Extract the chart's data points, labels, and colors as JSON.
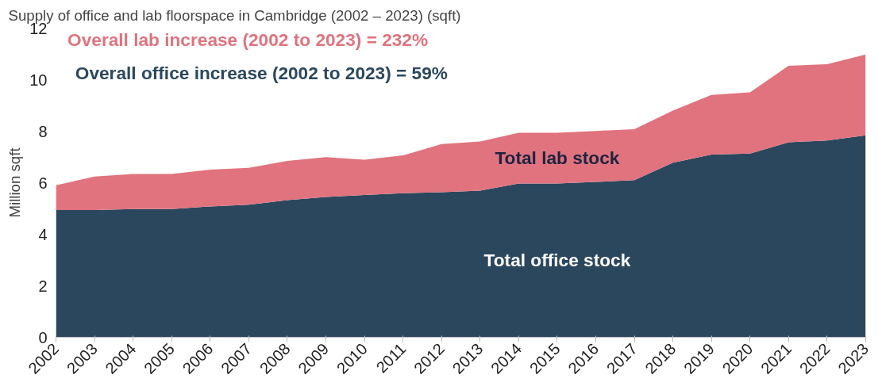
{
  "chart_data": {
    "type": "area",
    "stacked": true,
    "title": "Supply of office and lab floorspace in Cambridge (2002 – 2023) (sqft)",
    "ylabel": "Million sqft",
    "annotations": [
      "Overall lab increase (2002 to 2023) = 232%",
      "Overall office increase (2002 to 2023) = 59%"
    ],
    "categories": [
      "2002",
      "2003",
      "2004",
      "2005",
      "2006",
      "2007",
      "2008",
      "2009",
      "2010",
      "2011",
      "2012",
      "2013",
      "2014",
      "2015",
      "2016",
      "2017",
      "2018",
      "2019",
      "2020",
      "2021",
      "2022",
      "2023"
    ],
    "series": [
      {
        "name": "Total office stock",
        "color": "#2b475e",
        "values": [
          4.94,
          4.94,
          4.98,
          4.98,
          5.08,
          5.15,
          5.32,
          5.45,
          5.52,
          5.59,
          5.63,
          5.69,
          5.97,
          5.97,
          6.03,
          6.1,
          6.78,
          7.09,
          7.13,
          7.57,
          7.64,
          7.84
        ]
      },
      {
        "name": "Total lab stock",
        "color": "#e0737e",
        "values": [
          0.96,
          1.3,
          1.36,
          1.36,
          1.43,
          1.43,
          1.53,
          1.54,
          1.37,
          1.47,
          1.87,
          1.91,
          1.97,
          1.97,
          1.98,
          1.98,
          2.02,
          2.32,
          2.38,
          2.97,
          2.96,
          3.14
        ]
      }
    ],
    "ylim": [
      0,
      12
    ],
    "yticks": [
      0,
      2,
      4,
      6,
      8,
      10,
      12
    ],
    "grid": false
  }
}
